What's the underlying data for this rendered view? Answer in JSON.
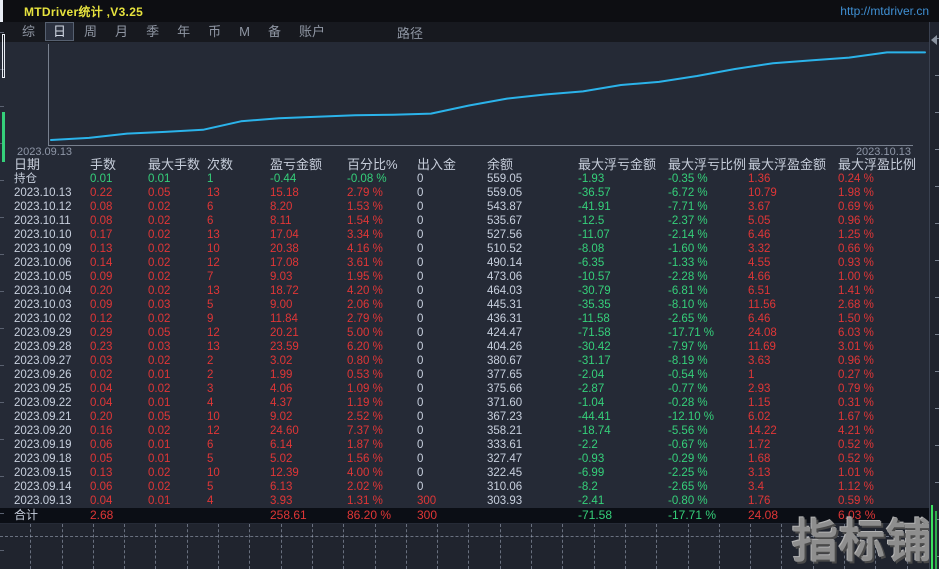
{
  "title_bar": {
    "title": "MTDriver统计 ,V3.25",
    "url": "http://mtdriver.cn"
  },
  "menu": {
    "items": [
      "综",
      "日",
      "周",
      "月",
      "季",
      "年",
      "币",
      "M",
      "备",
      "账户"
    ],
    "selected_index": 1,
    "path_label": "路径"
  },
  "chart_data": {
    "type": "line",
    "title": "",
    "xlabel": "",
    "ylabel": "",
    "x_start_label": "2023.09.13",
    "x_end_label": "2023.10.13",
    "x": [
      "2023.09.13",
      "2023.09.14",
      "2023.09.15",
      "2023.09.18",
      "2023.09.19",
      "2023.09.20",
      "2023.09.21",
      "2023.09.22",
      "2023.09.25",
      "2023.09.26",
      "2023.09.27",
      "2023.09.28",
      "2023.09.29",
      "2023.10.02",
      "2023.10.03",
      "2023.10.04",
      "2023.10.05",
      "2023.10.06",
      "2023.10.09",
      "2023.10.10",
      "2023.10.11",
      "2023.10.12",
      "2023.10.13",
      "持仓"
    ],
    "series": [
      {
        "name": "余额",
        "values": [
          303.93,
          310.06,
          322.45,
          327.47,
          333.61,
          358.21,
          367.23,
          371.6,
          375.66,
          377.65,
          380.67,
          404.26,
          424.47,
          436.31,
          445.31,
          464.03,
          473.06,
          490.14,
          510.52,
          527.56,
          535.67,
          543.87,
          559.05,
          559.05
        ]
      }
    ],
    "ylim": [
      298,
      566
    ],
    "grid": false,
    "legend": "none",
    "line_color": "#2bb3ea"
  },
  "table": {
    "columns": [
      "日期",
      "手数",
      "最大手数",
      "次数",
      "盈亏金额",
      "百分比%",
      "出入金",
      "余额",
      "最大浮亏金额",
      "最大浮亏比例",
      "最大浮盈金额",
      "最大浮盈比例"
    ],
    "color_variants": {
      "open": [
        "n",
        "g",
        "g",
        "g",
        "g",
        "g",
        "n",
        "n",
        "g",
        "g",
        "r",
        "r"
      ],
      "daily": [
        "n",
        "r",
        "r",
        "r",
        "r",
        "r",
        "n",
        "n",
        "g",
        "g",
        "r",
        "r"
      ],
      "deposit": [
        "n",
        "r",
        "r",
        "r",
        "r",
        "r",
        "r",
        "n",
        "g",
        "g",
        "r",
        "r"
      ],
      "total": [
        "n",
        "r",
        "n",
        "n",
        "r",
        "r",
        "r",
        "n",
        "g",
        "g",
        "r",
        "r"
      ]
    },
    "rows": [
      {
        "variant": "open",
        "cells": [
          "持仓",
          "0.01",
          "0.01",
          "1",
          "-0.44",
          "-0.08 %",
          "0",
          "559.05",
          "-1.93",
          "-0.35 %",
          "1.36",
          "0.24 %"
        ]
      },
      {
        "variant": "daily",
        "cells": [
          "2023.10.13",
          "0.22",
          "0.05",
          "13",
          "15.18",
          "2.79 %",
          "0",
          "559.05",
          "-36.57",
          "-6.72 %",
          "10.79",
          "1.98 %"
        ]
      },
      {
        "variant": "daily",
        "cells": [
          "2023.10.12",
          "0.08",
          "0.02",
          "6",
          "8.20",
          "1.53 %",
          "0",
          "543.87",
          "-41.91",
          "-7.71 %",
          "3.67",
          "0.69 %"
        ]
      },
      {
        "variant": "daily",
        "cells": [
          "2023.10.11",
          "0.08",
          "0.02",
          "6",
          "8.11",
          "1.54 %",
          "0",
          "535.67",
          "-12.5",
          "-2.37 %",
          "5.05",
          "0.96 %"
        ]
      },
      {
        "variant": "daily",
        "cells": [
          "2023.10.10",
          "0.17",
          "0.02",
          "13",
          "17.04",
          "3.34 %",
          "0",
          "527.56",
          "-11.07",
          "-2.14 %",
          "6.46",
          "1.25 %"
        ]
      },
      {
        "variant": "daily",
        "cells": [
          "2023.10.09",
          "0.13",
          "0.02",
          "10",
          "20.38",
          "4.16 %",
          "0",
          "510.52",
          "-8.08",
          "-1.60 %",
          "3.32",
          "0.66 %"
        ]
      },
      {
        "variant": "daily",
        "cells": [
          "2023.10.06",
          "0.14",
          "0.02",
          "12",
          "17.08",
          "3.61 %",
          "0",
          "490.14",
          "-6.35",
          "-1.33 %",
          "4.55",
          "0.93 %"
        ]
      },
      {
        "variant": "daily",
        "cells": [
          "2023.10.05",
          "0.09",
          "0.02",
          "7",
          "9.03",
          "1.95 %",
          "0",
          "473.06",
          "-10.57",
          "-2.28 %",
          "4.66",
          "1.00 %"
        ]
      },
      {
        "variant": "daily",
        "cells": [
          "2023.10.04",
          "0.20",
          "0.02",
          "13",
          "18.72",
          "4.20 %",
          "0",
          "464.03",
          "-30.79",
          "-6.81 %",
          "6.51",
          "1.41 %"
        ]
      },
      {
        "variant": "daily",
        "cells": [
          "2023.10.03",
          "0.09",
          "0.03",
          "5",
          "9.00",
          "2.06 %",
          "0",
          "445.31",
          "-35.35",
          "-8.10 %",
          "11.56",
          "2.68 %"
        ]
      },
      {
        "variant": "daily",
        "cells": [
          "2023.10.02",
          "0.12",
          "0.02",
          "9",
          "11.84",
          "2.79 %",
          "0",
          "436.31",
          "-11.58",
          "-2.65 %",
          "6.46",
          "1.50 %"
        ]
      },
      {
        "variant": "daily",
        "cells": [
          "2023.09.29",
          "0.29",
          "0.05",
          "12",
          "20.21",
          "5.00 %",
          "0",
          "424.47",
          "-71.58",
          "-17.71 %",
          "24.08",
          "6.03 %"
        ]
      },
      {
        "variant": "daily",
        "cells": [
          "2023.09.28",
          "0.23",
          "0.03",
          "13",
          "23.59",
          "6.20 %",
          "0",
          "404.26",
          "-30.42",
          "-7.97 %",
          "11.69",
          "3.01 %"
        ]
      },
      {
        "variant": "daily",
        "cells": [
          "2023.09.27",
          "0.03",
          "0.02",
          "2",
          "3.02",
          "0.80 %",
          "0",
          "380.67",
          "-31.17",
          "-8.19 %",
          "3.63",
          "0.96 %"
        ]
      },
      {
        "variant": "daily",
        "cells": [
          "2023.09.26",
          "0.02",
          "0.01",
          "2",
          "1.99",
          "0.53 %",
          "0",
          "377.65",
          "-2.04",
          "-0.54 %",
          "1",
          "0.27 %"
        ]
      },
      {
        "variant": "daily",
        "cells": [
          "2023.09.25",
          "0.04",
          "0.02",
          "3",
          "4.06",
          "1.09 %",
          "0",
          "375.66",
          "-2.87",
          "-0.77 %",
          "2.93",
          "0.79 %"
        ]
      },
      {
        "variant": "daily",
        "cells": [
          "2023.09.22",
          "0.04",
          "0.01",
          "4",
          "4.37",
          "1.19 %",
          "0",
          "371.60",
          "-1.04",
          "-0.28 %",
          "1.15",
          "0.31 %"
        ]
      },
      {
        "variant": "daily",
        "cells": [
          "2023.09.21",
          "0.20",
          "0.05",
          "10",
          "9.02",
          "2.52 %",
          "0",
          "367.23",
          "-44.41",
          "-12.10 %",
          "6.02",
          "1.67 %"
        ]
      },
      {
        "variant": "daily",
        "cells": [
          "2023.09.20",
          "0.16",
          "0.02",
          "12",
          "24.60",
          "7.37 %",
          "0",
          "358.21",
          "-18.74",
          "-5.56 %",
          "14.22",
          "4.21 %"
        ]
      },
      {
        "variant": "daily",
        "cells": [
          "2023.09.19",
          "0.06",
          "0.01",
          "6",
          "6.14",
          "1.87 %",
          "0",
          "333.61",
          "-2.2",
          "-0.67 %",
          "1.72",
          "0.52 %"
        ]
      },
      {
        "variant": "daily",
        "cells": [
          "2023.09.18",
          "0.05",
          "0.01",
          "5",
          "5.02",
          "1.56 %",
          "0",
          "327.47",
          "-0.93",
          "-0.29 %",
          "1.68",
          "0.52 %"
        ]
      },
      {
        "variant": "daily",
        "cells": [
          "2023.09.15",
          "0.13",
          "0.02",
          "10",
          "12.39",
          "4.00 %",
          "0",
          "322.45",
          "-6.99",
          "-2.25 %",
          "3.13",
          "1.01 %"
        ]
      },
      {
        "variant": "daily",
        "cells": [
          "2023.09.14",
          "0.06",
          "0.02",
          "5",
          "6.13",
          "2.02 %",
          "0",
          "310.06",
          "-8.2",
          "-2.65 %",
          "3.4",
          "1.12 %"
        ]
      },
      {
        "variant": "deposit",
        "cells": [
          "2023.09.13",
          "0.04",
          "0.01",
          "4",
          "3.93",
          "1.31 %",
          "300",
          "303.93",
          "-2.41",
          "-0.80 %",
          "1.76",
          "0.59 %"
        ]
      }
    ],
    "total_row": {
      "variant": "total",
      "cells": [
        "合计",
        "2.68",
        "",
        "",
        "258.61",
        "86.20 %",
        "300",
        "",
        "-71.58",
        "-17.71 %",
        "24.08",
        "6.03 %"
      ]
    }
  },
  "watermark": "指标铺"
}
